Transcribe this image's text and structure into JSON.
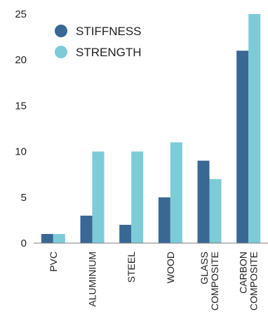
{
  "chart_data": {
    "type": "bar",
    "categories": [
      [
        "PVC"
      ],
      [
        "ALUMINIUM"
      ],
      [
        "STEEL"
      ],
      [
        "WOOD"
      ],
      [
        "GLASS",
        "COMPOSITE"
      ],
      [
        "CARBON",
        "COMPOSITE"
      ]
    ],
    "series": [
      {
        "name": "STIFFNESS",
        "color": "#3a6895",
        "values": [
          1,
          3,
          2,
          5,
          9,
          21
        ]
      },
      {
        "name": "STRENGTH",
        "color": "#7ecbd8",
        "values": [
          1,
          10,
          10,
          11,
          7,
          25
        ]
      }
    ],
    "y_ticks": [
      0,
      5,
      10,
      15,
      20,
      25
    ],
    "ylim": [
      0,
      25
    ],
    "grid": false,
    "legend_position": "top-left"
  }
}
